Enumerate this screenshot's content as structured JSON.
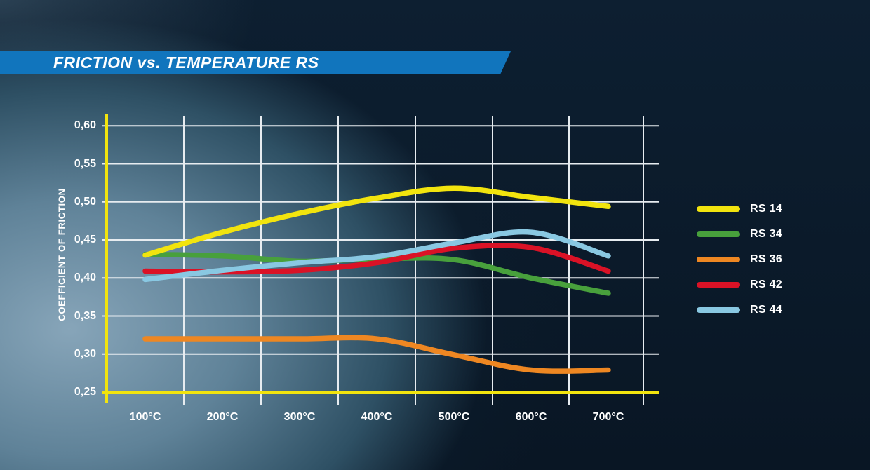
{
  "header": {
    "title": "FRICTION vs. TEMPERATURE RS",
    "banner_color": "#1175bd"
  },
  "chart_data": {
    "type": "line",
    "title": "FRICTION vs. TEMPERATURE RS",
    "xlabel": "",
    "ylabel": "COEFFICIENT OF FRICTION",
    "categories": [
      "100°C",
      "200°C",
      "300°C",
      "400°C",
      "500°C",
      "600°C",
      "700°C"
    ],
    "x_values": [
      100,
      200,
      300,
      400,
      500,
      600,
      700
    ],
    "ylim": [
      0.25,
      0.6
    ],
    "grid": true,
    "legend_position": "right",
    "axis_color": "#f2e40e",
    "grid_color": "#e7ecf0",
    "y_ticks": [
      {
        "label": "0,60",
        "value": 0.6
      },
      {
        "label": "0,55",
        "value": 0.55
      },
      {
        "label": "0,50",
        "value": 0.5
      },
      {
        "label": "0,45",
        "value": 0.45
      },
      {
        "label": "0,40",
        "value": 0.4
      },
      {
        "label": "0,35",
        "value": 0.35
      },
      {
        "label": "0,30",
        "value": 0.3
      },
      {
        "label": "0,25",
        "value": 0.25
      }
    ],
    "series": [
      {
        "name": "RS 14",
        "color": "#f2e40e",
        "values": [
          0.43,
          0.46,
          0.485,
          0.505,
          0.518,
          0.506,
          0.494
        ]
      },
      {
        "name": "RS 34",
        "color": "#48a03c",
        "values": [
          0.431,
          0.429,
          0.422,
          0.425,
          0.424,
          0.4,
          0.38
        ]
      },
      {
        "name": "RS 36",
        "color": "#ee8722",
        "values": [
          0.32,
          0.32,
          0.32,
          0.32,
          0.299,
          0.279,
          0.279
        ]
      },
      {
        "name": "RS 42",
        "color": "#da1226",
        "values": [
          0.409,
          0.408,
          0.41,
          0.42,
          0.439,
          0.44,
          0.409
        ]
      },
      {
        "name": "RS 44",
        "color": "#89c8e2",
        "values": [
          0.398,
          0.41,
          0.42,
          0.428,
          0.446,
          0.46,
          0.429
        ]
      }
    ]
  }
}
